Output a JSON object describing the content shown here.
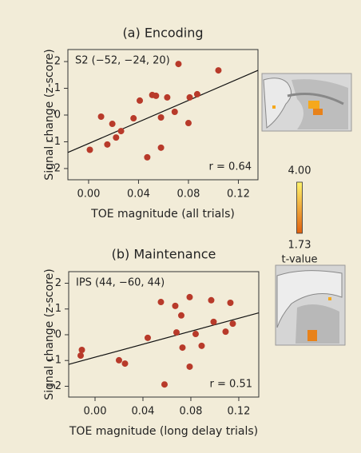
{
  "chart_data": [
    {
      "type": "scatter",
      "title": "(a) Encoding",
      "x_label": "TOE magnitude (all trials)",
      "y_label": "Signal change (z-score)",
      "annotations": [
        "S2 (−52, −24, 20)",
        "r = 0.64"
      ],
      "x": [
        0.001,
        0.01,
        0.015,
        0.019,
        0.022,
        0.026,
        0.036,
        0.041,
        0.047,
        0.051,
        0.054,
        0.058,
        0.058,
        0.063,
        0.069,
        0.072,
        0.08,
        0.081,
        0.087,
        0.104
      ],
      "values": [
        -1.3,
        -0.06,
        -1.1,
        -0.33,
        -0.84,
        -0.6,
        -0.12,
        0.54,
        -1.58,
        0.75,
        0.72,
        -0.09,
        -1.22,
        0.66,
        0.12,
        1.91,
        -0.3,
        0.66,
        0.78,
        1.67
      ],
      "color": "#b83a2a",
      "fit": {
        "x": [
          -0.0166,
          0.1357
        ],
        "y": [
          -1.4,
          1.67
        ]
      },
      "xlim": [
        -0.0166,
        0.1357
      ],
      "ylim": [
        -2.42,
        2.45
      ],
      "xticks": [
        {
          "value": 0,
          "label": "0.00"
        },
        0.04,
        0.08,
        0.12
      ],
      "yticks": [
        {
          "value": -2,
          "label": "−2"
        },
        {
          "value": -1,
          "label": "−1"
        },
        0,
        1,
        2
      ]
    },
    {
      "type": "scatter",
      "title": "(b) Maintenance",
      "x_label": "TOE magnitude (long delay trials)",
      "y_label": "Signal change (z-score)",
      "annotations": [
        "IPS (44, −60, 44)",
        "r = 0.51"
      ],
      "x": [
        -0.011,
        -0.012,
        0.02,
        0.025,
        0.044,
        0.055,
        0.058,
        0.067,
        0.068,
        0.072,
        0.073,
        0.079,
        0.079,
        0.084,
        0.089,
        0.097,
        0.099,
        0.109,
        0.115,
        0.113
      ],
      "values": [
        -0.59,
        -0.81,
        -0.99,
        -1.12,
        -0.12,
        1.27,
        -1.93,
        1.12,
        0.09,
        0.75,
        -0.5,
        1.46,
        -1.24,
        0.03,
        -0.43,
        1.34,
        0.5,
        0.12,
        0.43,
        1.24
      ],
      "color": "#b83a2a",
      "fit": {
        "x": [
          -0.022,
          0.1367
        ],
        "y": [
          -1.15,
          0.85
        ]
      },
      "xlim": [
        -0.022,
        0.1367
      ],
      "ylim": [
        -2.42,
        2.45
      ],
      "xticks": [
        {
          "value": 0,
          "label": "0.00"
        },
        0.04,
        0.08,
        0.12
      ],
      "yticks": [
        {
          "value": -2,
          "label": "−2"
        },
        {
          "value": -1,
          "label": "−1"
        },
        0,
        1,
        2
      ]
    }
  ],
  "colorbar": {
    "ticks": [
      {
        "value": 4,
        "label": "4.00"
      },
      1.73
    ],
    "label": "t-value",
    "colors": [
      "#fff36a",
      "#e0600f"
    ]
  }
}
